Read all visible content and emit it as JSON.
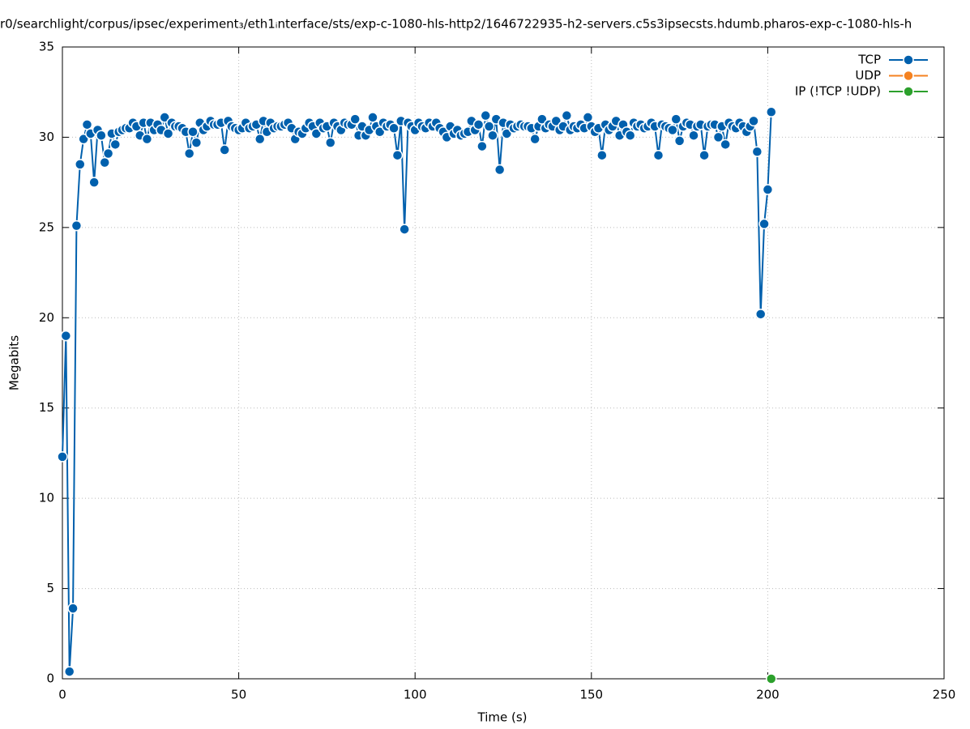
{
  "chart_data": {
    "type": "line",
    "title": "r0/searchlight/corpus/ipsec/experiment₃/eth1ᵢnterface/sts/exp-c-1080-hls-http2/1646722935-h2-servers.c5s3ipsecsts.hdumb.pharos-exp-c-1080-hls-h",
    "xlabel": "Time (s)",
    "ylabel": "Megabits",
    "xlim": [
      0,
      250
    ],
    "xticks": [
      0,
      50,
      100,
      150,
      200,
      250
    ],
    "ylim": [
      0,
      35
    ],
    "yticks": [
      0,
      5,
      10,
      15,
      20,
      25,
      30,
      35
    ],
    "grid": true,
    "legend": "top-right",
    "series": [
      {
        "name": "TCP",
        "color": "#0060ad",
        "x": [
          0,
          1,
          2,
          3,
          4,
          5,
          6,
          7,
          8,
          9,
          10,
          11,
          12,
          13,
          14,
          15,
          16,
          17,
          18,
          19,
          20,
          21,
          22,
          23,
          24,
          25,
          26,
          27,
          28,
          29,
          30,
          31,
          32,
          33,
          34,
          35,
          36,
          37,
          38,
          39,
          40,
          41,
          42,
          43,
          44,
          45,
          46,
          47,
          48,
          49,
          50,
          51,
          52,
          53,
          54,
          55,
          56,
          57,
          58,
          59,
          60,
          61,
          62,
          63,
          64,
          65,
          66,
          67,
          68,
          69,
          70,
          71,
          72,
          73,
          74,
          75,
          76,
          77,
          78,
          79,
          80,
          81,
          82,
          83,
          84,
          85,
          86,
          87,
          88,
          89,
          90,
          91,
          92,
          93,
          94,
          95,
          96,
          97,
          98,
          99,
          100,
          101,
          102,
          103,
          104,
          105,
          106,
          107,
          108,
          109,
          110,
          111,
          112,
          113,
          114,
          115,
          116,
          117,
          118,
          119,
          120,
          121,
          122,
          123,
          124,
          125,
          126,
          127,
          128,
          129,
          130,
          131,
          132,
          133,
          134,
          135,
          136,
          137,
          138,
          139,
          140,
          141,
          142,
          143,
          144,
          145,
          146,
          147,
          148,
          149,
          150,
          151,
          152,
          153,
          154,
          155,
          156,
          157,
          158,
          159,
          160,
          161,
          162,
          163,
          164,
          165,
          166,
          167,
          168,
          169,
          170,
          171,
          172,
          173,
          174,
          175,
          176,
          177,
          178,
          179,
          180,
          181,
          182,
          183,
          184,
          185,
          186,
          187,
          188,
          189,
          190,
          191,
          192,
          193,
          194,
          195,
          196,
          197,
          198,
          199,
          200,
          201
        ],
        "values": [
          12.3,
          19.0,
          0.4,
          3.9,
          25.1,
          28.5,
          29.9,
          30.7,
          30.2,
          27.5,
          30.4,
          30.1,
          28.6,
          29.1,
          30.2,
          29.6,
          30.3,
          30.4,
          30.5,
          30.5,
          30.8,
          30.6,
          30.1,
          30.8,
          29.9,
          30.8,
          30.4,
          30.7,
          30.4,
          31.1,
          30.2,
          30.8,
          30.6,
          30.6,
          30.5,
          30.3,
          29.1,
          30.3,
          29.7,
          30.8,
          30.4,
          30.6,
          30.9,
          30.7,
          30.7,
          30.8,
          29.3,
          30.9,
          30.6,
          30.5,
          30.4,
          30.5,
          30.8,
          30.5,
          30.6,
          30.7,
          29.9,
          30.9,
          30.3,
          30.8,
          30.5,
          30.6,
          30.6,
          30.7,
          30.8,
          30.5,
          29.9,
          30.3,
          30.2,
          30.5,
          30.8,
          30.6,
          30.2,
          30.8,
          30.5,
          30.6,
          29.7,
          30.8,
          30.6,
          30.4,
          30.8,
          30.7,
          30.7,
          31.0,
          30.1,
          30.6,
          30.1,
          30.4,
          31.1,
          30.6,
          30.3,
          30.8,
          30.6,
          30.7,
          30.5,
          29.0,
          30.9,
          24.9,
          30.8,
          30.6,
          30.4,
          30.8,
          30.6,
          30.5,
          30.8,
          30.6,
          30.8,
          30.5,
          30.3,
          30.0,
          30.6,
          30.2,
          30.4,
          30.1,
          30.2,
          30.3,
          30.9,
          30.4,
          30.7,
          29.5,
          31.2,
          30.6,
          30.1,
          31.0,
          28.2,
          30.8,
          30.2,
          30.7,
          30.5,
          30.6,
          30.7,
          30.6,
          30.6,
          30.5,
          29.9,
          30.6,
          31.0,
          30.5,
          30.7,
          30.6,
          30.9,
          30.4,
          30.6,
          31.2,
          30.4,
          30.6,
          30.5,
          30.7,
          30.5,
          31.1,
          30.6,
          30.3,
          30.5,
          29.0,
          30.7,
          30.4,
          30.6,
          30.9,
          30.1,
          30.7,
          30.3,
          30.1,
          30.8,
          30.6,
          30.7,
          30.5,
          30.6,
          30.8,
          30.6,
          29.0,
          30.7,
          30.6,
          30.5,
          30.4,
          31.0,
          29.8,
          30.6,
          30.8,
          30.7,
          30.1,
          30.6,
          30.7,
          29.0,
          30.6,
          30.7,
          30.7,
          30.0,
          30.6,
          29.6,
          30.8,
          30.6,
          30.5,
          30.8,
          30.6,
          30.3,
          30.6,
          30.9,
          29.2,
          20.2,
          25.2,
          27.1,
          31.4
        ]
      },
      {
        "name": "UDP",
        "color": "#f58220",
        "x": [],
        "values": []
      },
      {
        "name": "IP (!TCP  !UDP)",
        "color": "#2ca02c",
        "x": [
          201
        ],
        "values": [
          0
        ]
      }
    ]
  }
}
